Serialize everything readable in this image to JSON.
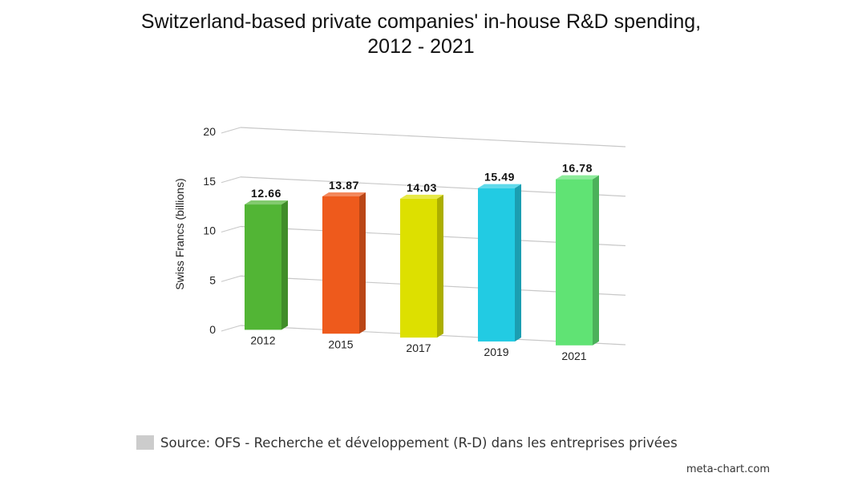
{
  "chart_data": {
    "type": "bar",
    "title_lines": [
      "Switzerland-based private companies' in-house R&D spending,",
      "2012 - 2021"
    ],
    "ylabel": "Swiss Francs (billions)",
    "xlabel": "",
    "categories": [
      "2012",
      "2015",
      "2017",
      "2019",
      "2021"
    ],
    "values": [
      12.66,
      13.87,
      14.03,
      15.49,
      16.78
    ],
    "value_labels": [
      "12.66",
      "13.87",
      "14.03",
      "15.49",
      "16.78"
    ],
    "colors": [
      "#52b535",
      "#ee5a1c",
      "#dde000",
      "#22cbe3",
      "#60e374"
    ],
    "yticks": [
      "0",
      "5",
      "10",
      "15",
      "20"
    ],
    "ytick_values": [
      0,
      5,
      10,
      15,
      20
    ],
    "ylim": [
      0,
      20
    ],
    "grid": true,
    "legend": {
      "label": "Source: OFS - Recherche et développement (R-D) dans les entreprises privées",
      "color": "#cccccc",
      "placement": "bottom-left"
    }
  },
  "credit": "meta-chart.com"
}
